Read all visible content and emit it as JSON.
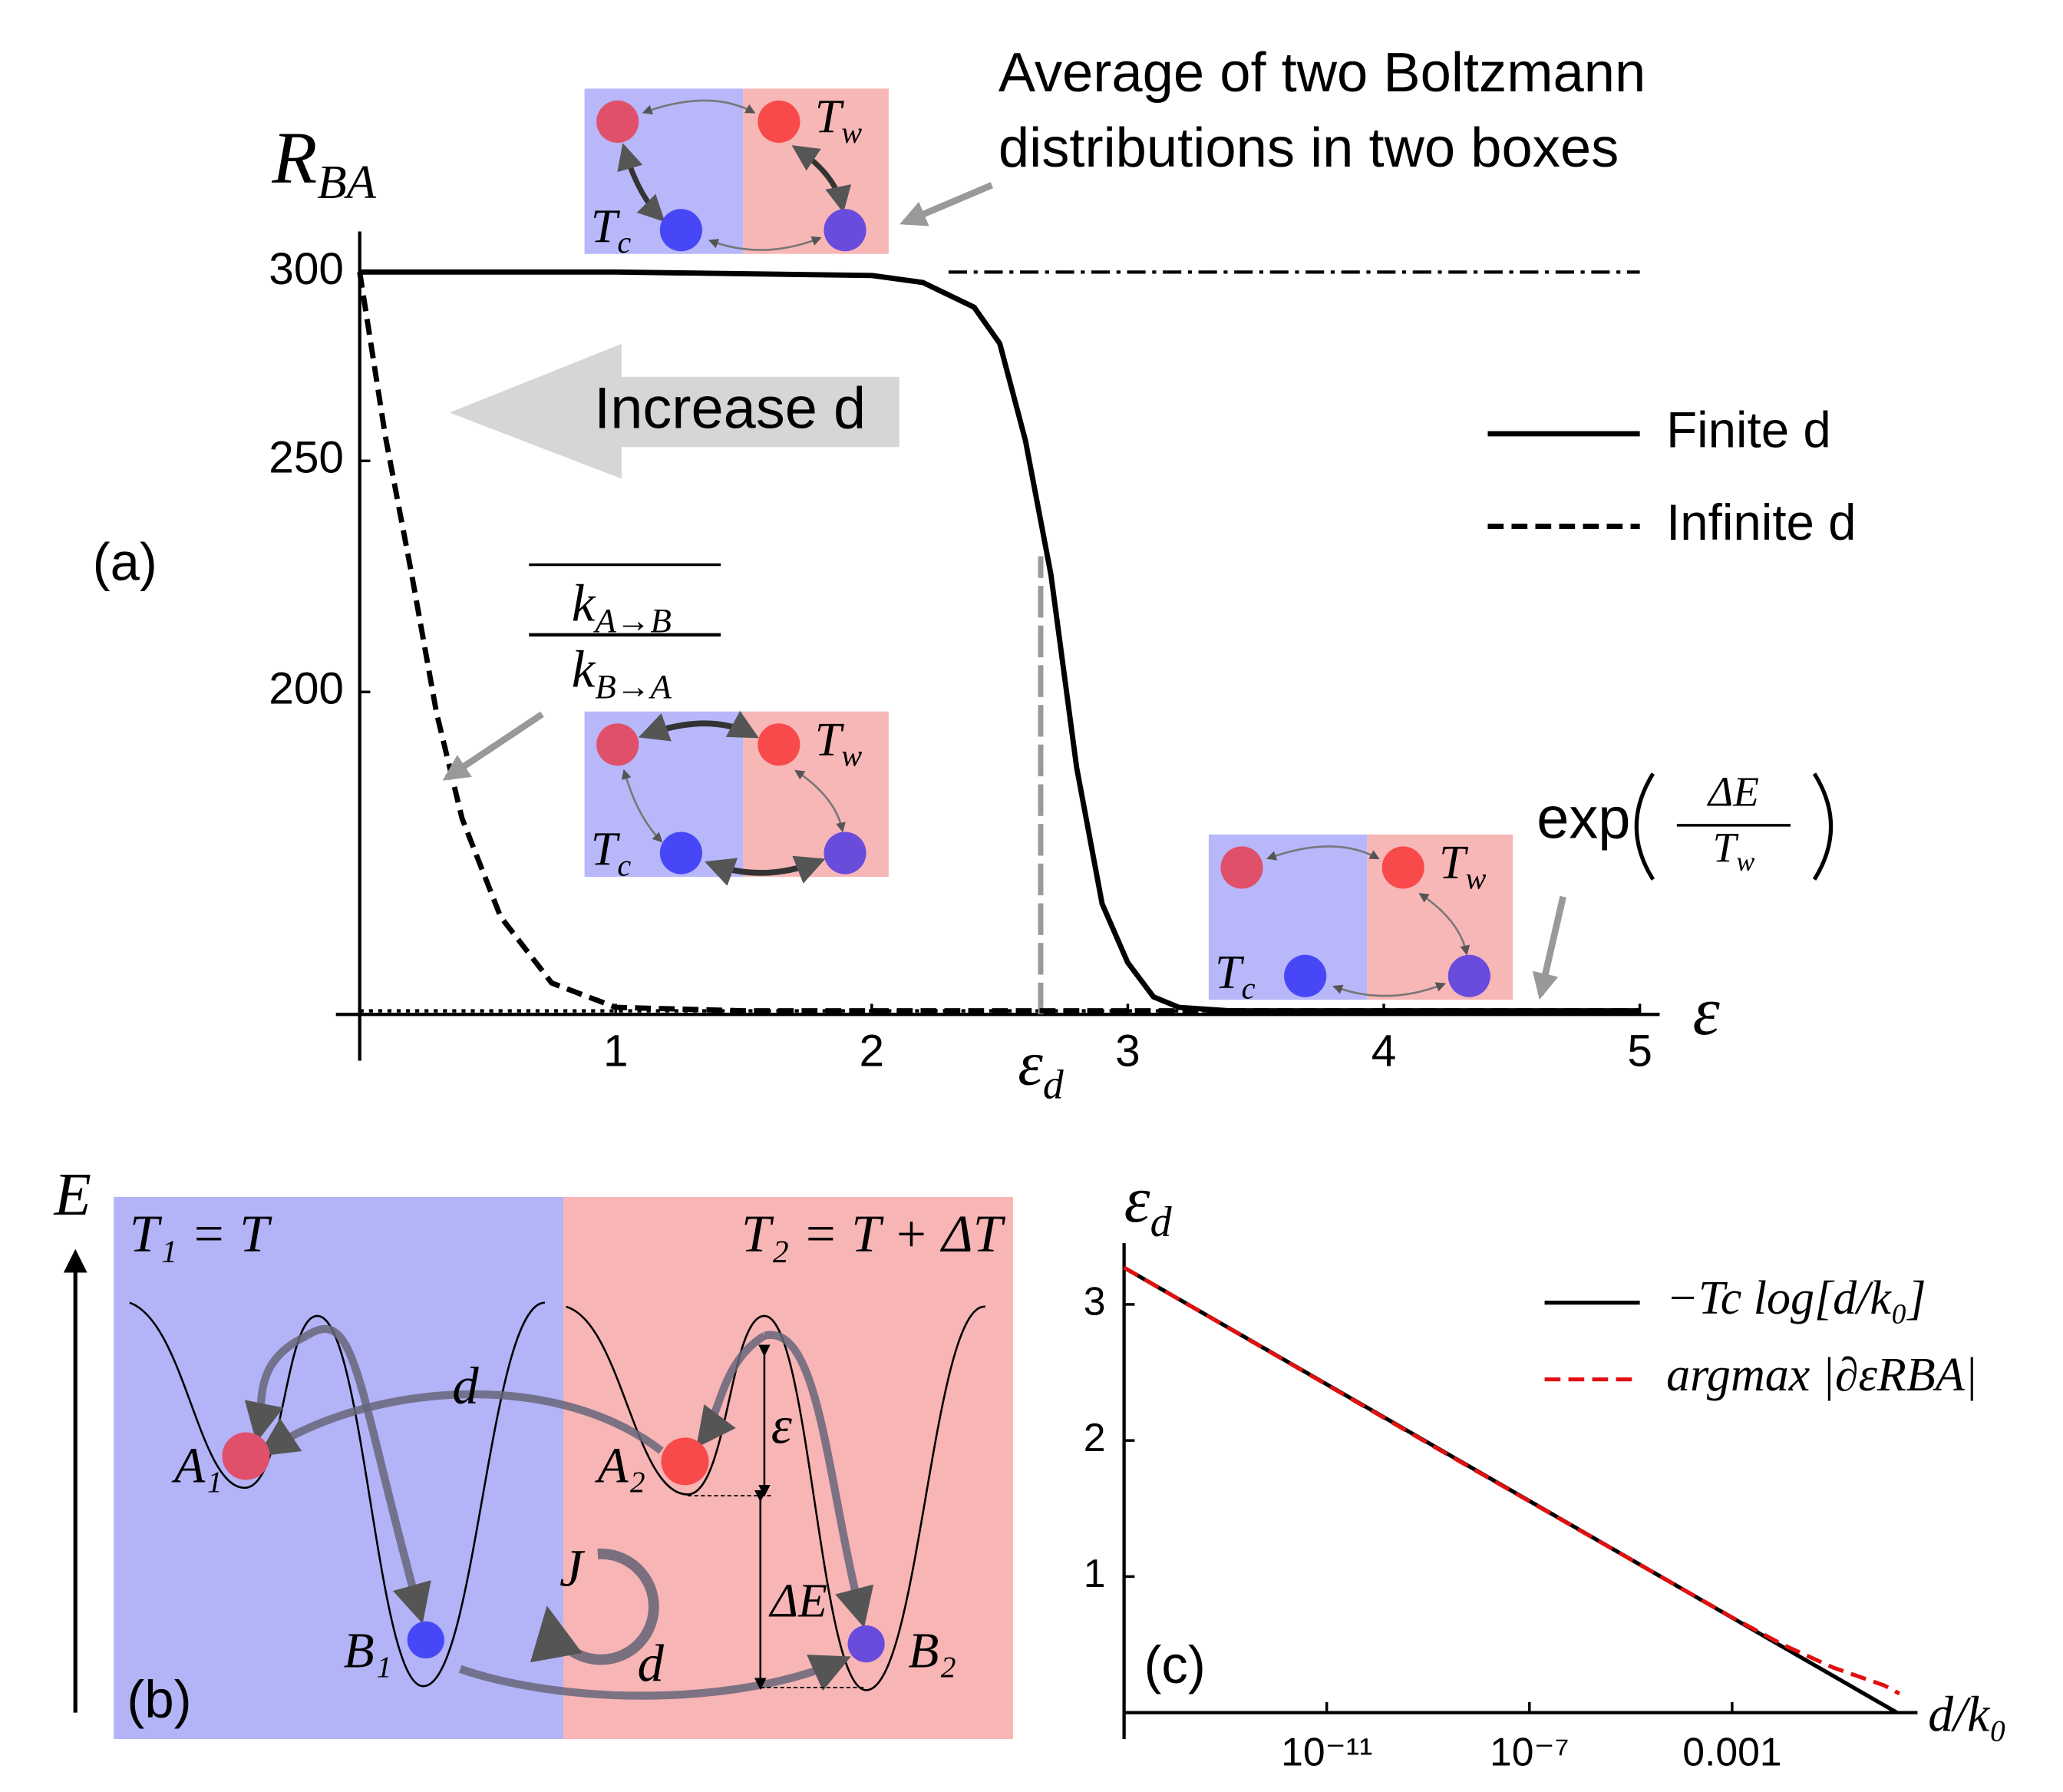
{
  "chart_data": [
    {
      "type": "line",
      "panel_label": "(a)",
      "y_label": {
        "text": "R",
        "sub": "BA"
      },
      "x_label": "ε",
      "xlim": [
        0,
        5
      ],
      "xticks": [
        1,
        2,
        3,
        4,
        5
      ],
      "ylim": [
        146.5,
        312
      ],
      "yticks": [
        200,
        250,
        300
      ],
      "y_log": true,
      "legend_position": "right",
      "series": [
        {
          "name": "Finite d",
          "color": "#000000",
          "dash": "solid",
          "x": [
            0,
            1,
            2,
            2.2,
            2.4,
            2.5,
            2.6,
            2.7,
            2.8,
            2.9,
            3.0,
            3.1,
            3.2,
            3.4,
            4,
            5
          ],
          "values": [
            300,
            300,
            299,
            297,
            290,
            280,
            255,
            224,
            186,
            163,
            154,
            149,
            147.5,
            147,
            147,
            147
          ]
        },
        {
          "name": "Infinite d",
          "color": "#000000",
          "dash": "dashed",
          "x": [
            0,
            0.1,
            0.2,
            0.3,
            0.4,
            0.55,
            0.75,
            1,
            1.5,
            2,
            5
          ],
          "values": [
            300,
            256,
            225,
            196,
            177,
            161,
            151,
            147.5,
            147,
            147,
            147
          ]
        }
      ],
      "reference_lines": [
        {
          "value": 300,
          "x": [
            2.3,
            5
          ],
          "dash": "dashdot"
        },
        {
          "value": 147,
          "x": [
            0,
            5
          ],
          "dash": "dotted"
        }
      ],
      "marker_line": {
        "x": 2.66,
        "top": 228,
        "label": {
          "text": "ε",
          "sub": "d"
        }
      },
      "annotations": {
        "increase": "Increase d",
        "boltzmann": [
          "Average of two Boltzmann",
          "distributions in two boxes"
        ],
        "ratio": {
          "numerator": {
            "text": "k",
            "sub": "A→B"
          },
          "denominator": {
            "text": "k",
            "sub": "B→A"
          }
        },
        "exp": {
          "text": "exp",
          "numerator": "ΔE",
          "denominator": {
            "text": "T",
            "sub": "w"
          }
        },
        "inset_warm": {
          "text": "T",
          "sub": "w"
        },
        "inset_cold": {
          "text": "T",
          "sub": "c"
        }
      }
    },
    {
      "type": "line",
      "panel_label": "(c)",
      "y_label": {
        "text": "ε",
        "sub": "d"
      },
      "x_label": "d/k₀",
      "x_log": true,
      "xlim": [
        1e-15,
        2.5
      ],
      "xticks": [
        {
          "value": 1e-11,
          "label": "10⁻¹¹"
        },
        {
          "value": 1e-07,
          "label": "10⁻⁷"
        },
        0.001
      ],
      "ylim": [
        0,
        3.45
      ],
      "yticks": [
        1,
        2,
        3
      ],
      "legend_position": "upper right",
      "series": [
        {
          "name": "−Tc log[d/k₀]",
          "color": "#000000",
          "dash": "solid",
          "x": [
            1e-15,
            1.8
          ],
          "values": [
            3.27,
            0
          ]
        },
        {
          "name": "argmax |∂εRBA|",
          "color": "#e01010",
          "dash": "dashed",
          "x": [
            1e-15,
            1e-09,
            1e-05,
            0.001,
            0.01,
            0.1,
            1,
            2
          ],
          "values": [
            3.27,
            1.98,
            1.125,
            0.7,
            0.5,
            0.33,
            0.2,
            0.14
          ]
        }
      ]
    }
  ],
  "diagram": {
    "panel_label": "(b)",
    "axis_label": "E",
    "left_temp": "T₁ = T",
    "right_temp": "T₂ = T + ΔT",
    "states": [
      "A₁",
      "A₂",
      "B₁",
      "B₂"
    ],
    "rate_labels": [
      "d",
      "d"
    ],
    "barrier": "ε",
    "gap": "ΔE",
    "current": "J"
  }
}
